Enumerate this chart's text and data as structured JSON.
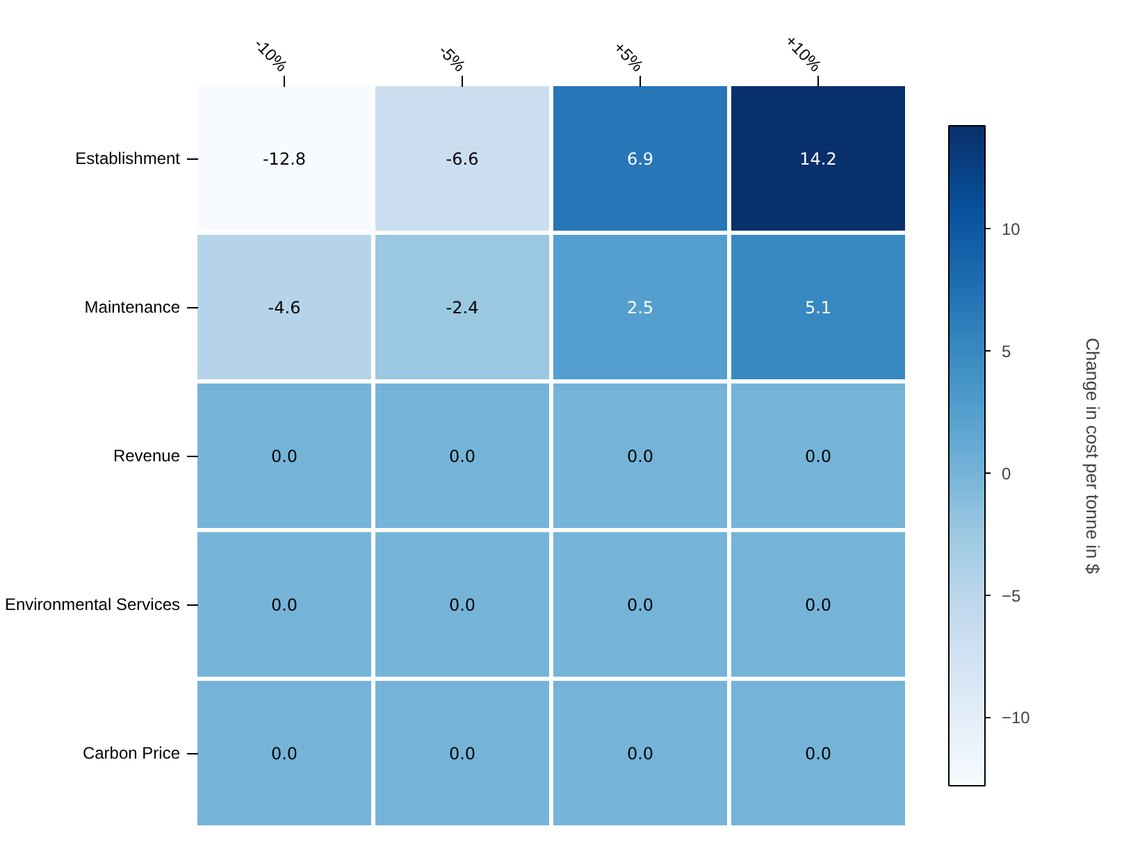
{
  "chart_data": {
    "type": "heatmap",
    "categories": [
      "-10%",
      "-5%",
      "+5%",
      "+10%"
    ],
    "y_categories": [
      "Establishment",
      "Maintenance",
      "Revenue",
      "Environmental Services",
      "Carbon Price"
    ],
    "cells": [
      [
        -12.8,
        -6.6,
        6.9,
        14.2
      ],
      [
        -4.6,
        -2.4,
        2.5,
        5.1
      ],
      [
        0.0,
        0.0,
        0.0,
        0.0
      ],
      [
        0.0,
        0.0,
        0.0,
        0.0
      ],
      [
        0.0,
        0.0,
        0.0,
        0.0
      ]
    ],
    "cell_labels": [
      [
        "-12.8",
        "-6.6",
        "6.9",
        "14.2"
      ],
      [
        "-4.6",
        "-2.4",
        "2.5",
        "5.1"
      ],
      [
        "0.0",
        "0.0",
        "0.0",
        "0.0"
      ],
      [
        "0.0",
        "0.0",
        "0.0",
        "0.0"
      ],
      [
        "0.0",
        "0.0",
        "0.0",
        "0.0"
      ]
    ],
    "clim": [
      -12.8,
      14.2
    ],
    "cticks": [
      -10,
      -5,
      0,
      5,
      10
    ],
    "clabel": "Change in cost per tonne in $"
  }
}
